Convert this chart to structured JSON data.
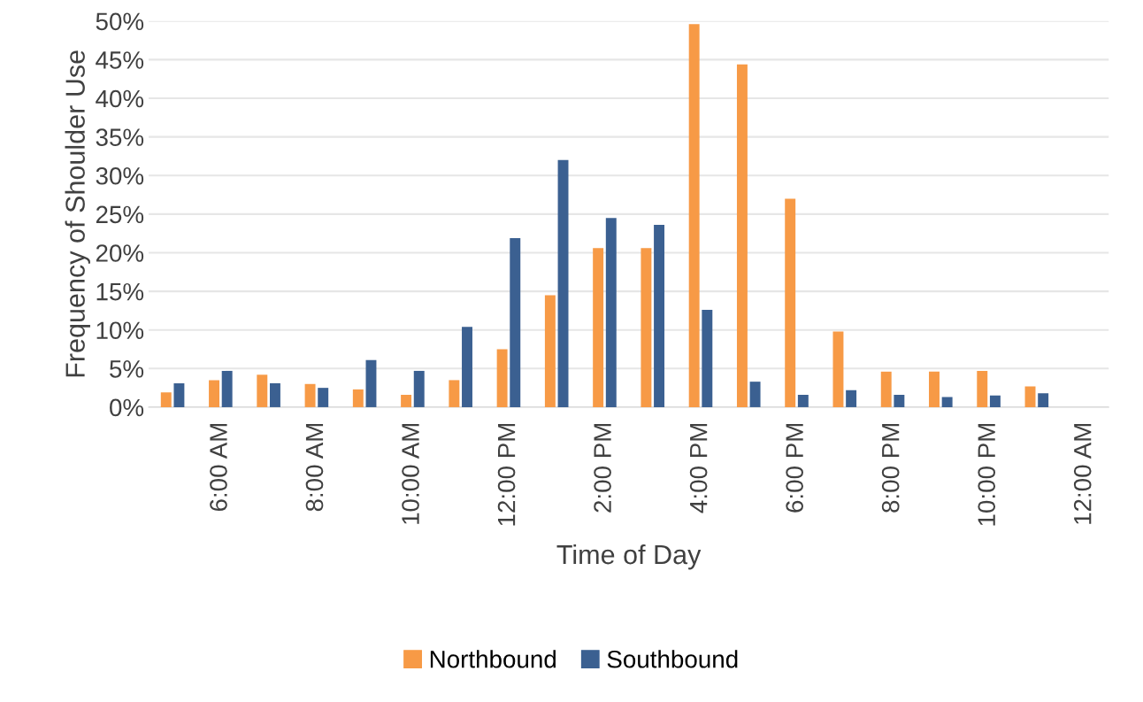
{
  "chart_data": {
    "type": "bar",
    "xlabel": "Time of Day",
    "ylabel": "Frequency of Shoulder Use",
    "categories": [
      null,
      "6:00 AM",
      null,
      "8:00 AM",
      null,
      "10:00 AM",
      null,
      "12:00 PM",
      null,
      "2:00 PM",
      null,
      "4:00 PM",
      null,
      "6:00 PM",
      null,
      "8:00 PM",
      null,
      "10:00 PM",
      null,
      "12:00 AM"
    ],
    "series": [
      {
        "name": "Northbound",
        "color": "#f79a46",
        "values": [
          1.9,
          3.5,
          4.2,
          3.0,
          2.3,
          1.6,
          3.5,
          7.5,
          14.5,
          20.6,
          20.6,
          49.6,
          44.4,
          27.0,
          9.8,
          4.6,
          4.6,
          4.7,
          2.7,
          null
        ]
      },
      {
        "name": "Southbound",
        "color": "#3b6091",
        "values": [
          3.1,
          4.7,
          3.1,
          2.5,
          6.1,
          4.7,
          10.4,
          21.9,
          32.0,
          24.5,
          23.6,
          12.6,
          3.3,
          1.6,
          2.2,
          1.6,
          1.3,
          1.5,
          1.8,
          null
        ]
      }
    ],
    "ylim": [
      0,
      50
    ],
    "yticks": [
      {
        "value": 0,
        "label": "0%"
      },
      {
        "value": 5,
        "label": "5%"
      },
      {
        "value": 10,
        "label": "10%"
      },
      {
        "value": 15,
        "label": "15%"
      },
      {
        "value": 20,
        "label": "20%"
      },
      {
        "value": 25,
        "label": "25%"
      },
      {
        "value": 30,
        "label": "30%"
      },
      {
        "value": 35,
        "label": "35%"
      },
      {
        "value": 40,
        "label": "40%"
      },
      {
        "value": 45,
        "label": "45%"
      },
      {
        "value": 50,
        "label": "50%"
      }
    ],
    "grid": "y",
    "legend": "bottom"
  }
}
